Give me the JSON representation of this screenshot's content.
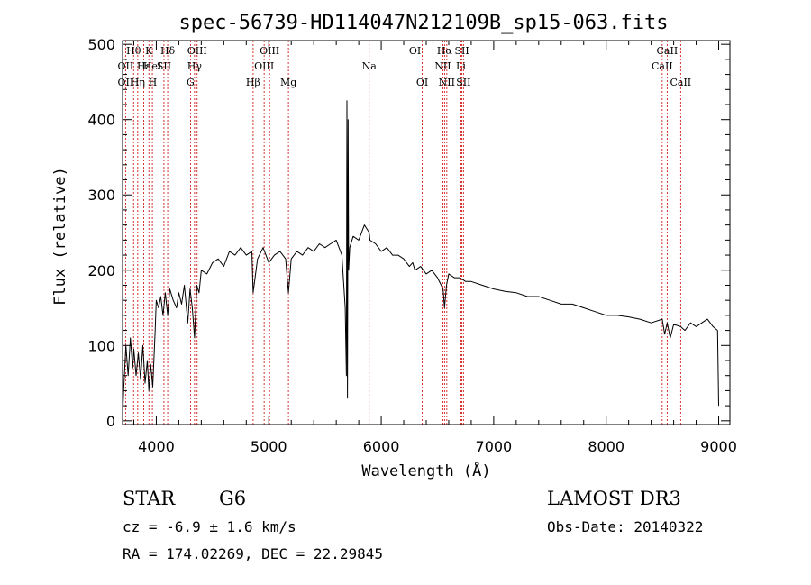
{
  "chart_data": {
    "type": "line",
    "title": "spec-56739-HD114047N212109B_sp15-063.fits",
    "xlabel": "Wavelength (Å)",
    "ylabel": "Flux (relative)",
    "xlim": [
      3700,
      9100
    ],
    "ylim": [
      -5,
      505
    ],
    "xticks": [
      4000,
      5000,
      6000,
      7000,
      8000,
      9000
    ],
    "yticks": [
      0,
      100,
      200,
      300,
      400,
      500
    ],
    "xtick_labels": [
      "4000",
      "5000",
      "6000",
      "7000",
      "8000",
      "9000"
    ],
    "ytick_labels": [
      "0",
      "100",
      "200",
      "300",
      "400",
      "500"
    ],
    "grid": false,
    "line_color": "#000000",
    "marker_color": "#cc0000",
    "series": [
      {
        "x": [
          3700,
          3710,
          3730,
          3750,
          3770,
          3790,
          3800,
          3820,
          3840,
          3860,
          3880,
          3900,
          3920,
          3934,
          3950,
          3968,
          3990,
          4000,
          4020,
          4040,
          4060,
          4080,
          4101,
          4120,
          4150,
          4180,
          4200,
          4225,
          4250,
          4280,
          4300,
          4320,
          4340,
          4360,
          4380,
          4400,
          4450,
          4500,
          4550,
          4600,
          4650,
          4700,
          4750,
          4800,
          4850,
          4861,
          4900,
          4950,
          5000,
          5050,
          5100,
          5150,
          5175,
          5200,
          5250,
          5300,
          5350,
          5400,
          5450,
          5500,
          5550,
          5600,
          5650,
          5680,
          5690,
          5695,
          5700,
          5705,
          5710,
          5720,
          5750,
          5800,
          5850,
          5893,
          5900,
          5950,
          6000,
          6050,
          6100,
          6150,
          6200,
          6250,
          6280,
          6300,
          6350,
          6400,
          6450,
          6500,
          6550,
          6563,
          6580,
          6600,
          6650,
          6700,
          6750,
          6800,
          6900,
          7000,
          7100,
          7200,
          7300,
          7400,
          7500,
          7600,
          7700,
          7800,
          7900,
          8000,
          8100,
          8200,
          8300,
          8400,
          8498,
          8520,
          8542,
          8570,
          8600,
          8662,
          8700,
          8750,
          8800,
          8850,
          8900,
          8950,
          8990,
          9000
        ],
        "y": [
          5,
          40,
          100,
          60,
          110,
          70,
          95,
          60,
          90,
          55,
          100,
          50,
          80,
          40,
          75,
          45,
          120,
          160,
          150,
          165,
          140,
          170,
          140,
          175,
          160,
          150,
          170,
          155,
          180,
          130,
          175,
          150,
          110,
          180,
          170,
          200,
          195,
          210,
          215,
          205,
          225,
          220,
          230,
          220,
          225,
          170,
          215,
          230,
          210,
          220,
          225,
          215,
          170,
          215,
          225,
          220,
          230,
          225,
          235,
          230,
          235,
          240,
          220,
          150,
          60,
          425,
          30,
          400,
          200,
          230,
          245,
          240,
          260,
          250,
          240,
          235,
          225,
          230,
          220,
          220,
          215,
          205,
          210,
          200,
          205,
          195,
          200,
          190,
          175,
          150,
          180,
          195,
          190,
          190,
          185,
          185,
          180,
          175,
          172,
          170,
          165,
          165,
          160,
          155,
          155,
          150,
          145,
          140,
          140,
          138,
          135,
          130,
          135,
          115,
          130,
          110,
          128,
          125,
          120,
          130,
          125,
          130,
          135,
          125,
          120,
          20
        ]
      }
    ],
    "spectral_lines": [
      {
        "label": "Hθ",
        "x": 3798,
        "row": 1
      },
      {
        "label": "K",
        "x": 3934,
        "row": 1
      },
      {
        "label": "Hδ",
        "x": 4101,
        "row": 1
      },
      {
        "label": "OIII",
        "x": 4363,
        "row": 1
      },
      {
        "label": "OIII",
        "x": 5007,
        "row": 1
      },
      {
        "label": "OI",
        "x": 6300,
        "row": 1
      },
      {
        "label": "Hα",
        "x": 6563,
        "row": 1
      },
      {
        "label": "SII",
        "x": 6717,
        "row": 1
      },
      {
        "label": "CaII",
        "x": 8542,
        "row": 1
      },
      {
        "label": "OII",
        "x": 3727,
        "row": 2
      },
      {
        "label": "Hε",
        "x": 3889,
        "row": 2
      },
      {
        "label": "HeI",
        "x": 3965,
        "row": 2
      },
      {
        "label": "SII",
        "x": 4068,
        "row": 2
      },
      {
        "label": "Hγ",
        "x": 4340,
        "row": 2
      },
      {
        "label": "OIII",
        "x": 4959,
        "row": 2
      },
      {
        "label": "Na",
        "x": 5893,
        "row": 2
      },
      {
        "label": "NII",
        "x": 6548,
        "row": 2
      },
      {
        "label": "Li",
        "x": 6708,
        "row": 2
      },
      {
        "label": "CaII",
        "x": 8498,
        "row": 2
      },
      {
        "label": "OII",
        "x": 3727,
        "row": 3
      },
      {
        "label": "Hη",
        "x": 3835,
        "row": 3
      },
      {
        "label": "H",
        "x": 3968,
        "row": 3
      },
      {
        "label": "G",
        "x": 4304,
        "row": 3
      },
      {
        "label": "Hβ",
        "x": 4861,
        "row": 3
      },
      {
        "label": "Mg",
        "x": 5175,
        "row": 3
      },
      {
        "label": "OI",
        "x": 6364,
        "row": 3
      },
      {
        "label": "NII",
        "x": 6583,
        "row": 3
      },
      {
        "label": "SII",
        "x": 6731,
        "row": 3
      },
      {
        "label": "CaII",
        "x": 8662,
        "row": 3
      }
    ]
  },
  "info": {
    "class_label": "STAR",
    "subclass": "G6",
    "redshift": "cz = -6.9 ± 1.6 km/s",
    "coords": "RA = 174.02269, DEC =  22.29845",
    "survey": "LAMOST DR3",
    "obs_date": "Obs-Date: 20140322"
  }
}
